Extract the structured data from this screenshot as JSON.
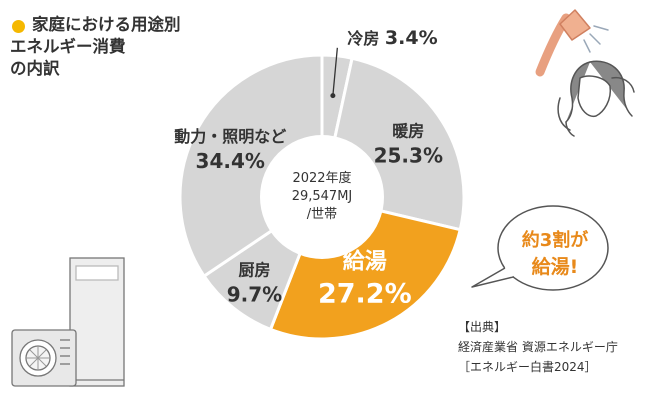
{
  "title": {
    "lines": [
      "家庭における用途別",
      "エネルギー消費",
      "の内訳"
    ]
  },
  "center_text": {
    "lines": [
      "2022年度",
      "29,547MJ",
      "/世帯"
    ]
  },
  "callout": {
    "lines": [
      "約3割が",
      "給湯!"
    ]
  },
  "source": {
    "lines": [
      "【出典】",
      "経済産業省 資源エネルギー庁",
      "［エネルギー白書2024］"
    ]
  },
  "colors": {
    "slice_gray": "#d6d6d6",
    "slice_highlight": "#f2a11e",
    "separator": "#ffffff",
    "title_dot": "#f5b800",
    "callout_text": "#e8891a",
    "text": "#333333"
  },
  "icons": [
    "shower-illustration-icon",
    "heat-pump-water-heater-icon"
  ],
  "chart_data": {
    "type": "pie",
    "categories": [
      "冷房",
      "暖房",
      "給湯",
      "厨房",
      "動力・照明など"
    ],
    "values": [
      3.4,
      25.3,
      27.2,
      9.7,
      34.4
    ],
    "value_labels": [
      "3.4%",
      "25.3%",
      "27.2%",
      "9.7%",
      "34.4%"
    ],
    "highlight": "給湯",
    "start": "top, clockwise"
  }
}
